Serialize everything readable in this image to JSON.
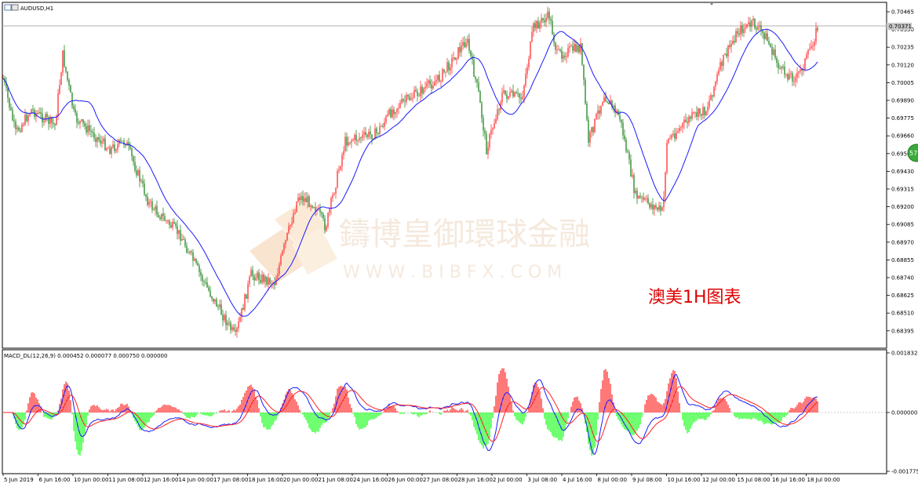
{
  "window": {
    "symbol_title": "AUDUSD,H1"
  },
  "main_chart": {
    "price_ticks": [
      "0.70465",
      "0.70350",
      "0.70235",
      "0.70120",
      "0.70005",
      "0.69890",
      "0.69775",
      "0.69660",
      "0.69545",
      "0.69430",
      "0.69315",
      "0.69200",
      "0.69085",
      "0.68970",
      "0.68855",
      "0.68740",
      "0.68625",
      "0.68510",
      "0.68395"
    ],
    "current_price_label": "0.70371",
    "annotation": "澳美1H图表",
    "watermark_cn": "鑄博皇御環球金融",
    "watermark_en": "W W W . B I B F X . C O M",
    "side_badge": "57"
  },
  "indicator": {
    "title": "MACD_DL(12,26,9) 0.000452 0.000077 0.000750 0.000000",
    "ticks": [
      "0.001832",
      "0.000000",
      "-0.001775"
    ]
  },
  "time_axis": {
    "labels": [
      "5 Jun 2019",
      "6 Jun 16:00",
      "10 Jun 00:00",
      "11 Jun 08:00",
      "12 Jun 16:00",
      "14 Jun 00:00",
      "17 Jun 08:00",
      "18 Jun 16:00",
      "20 Jun 00:00",
      "21 Jun 08:00",
      "24 Jun 16:00",
      "26 Jun 00:00",
      "27 Jun 08:00",
      "28 Jun 16:00",
      "2 Jul 00:00",
      "3 Jul 08:00",
      "4 Jul 16:00",
      "8 Jul 00:00",
      "9 Jul 08:00",
      "10 Jul 16:00",
      "12 Jul 00:00",
      "15 Jul 08:00",
      "16 Jul 16:00",
      "18 Jul 00:00"
    ]
  },
  "colors": {
    "bull": "#ff3b3b",
    "bear": "#2e8b2e",
    "ma_line": "#1a1aff",
    "macd_pos": "#ff4040",
    "macd_neg": "#33ff33",
    "annotation": "#e00000",
    "badge": "#3aaa3a"
  }
}
